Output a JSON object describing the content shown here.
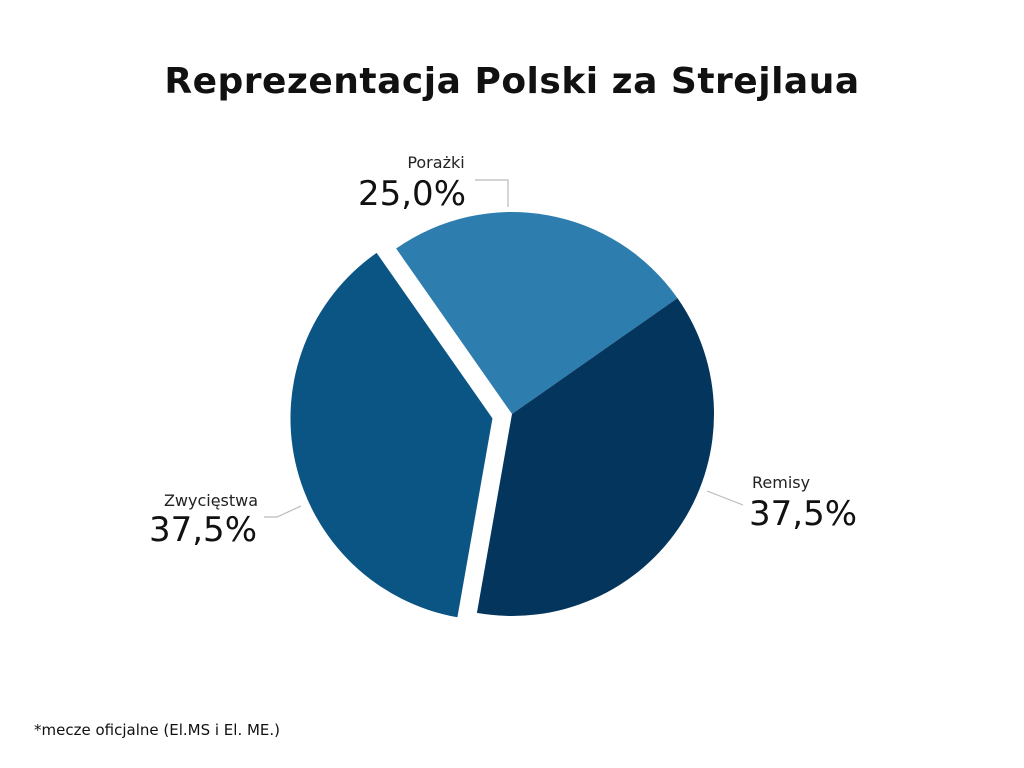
{
  "chart_data": {
    "type": "pie",
    "title": "Reprezentacja Polski za Strejlaua",
    "slices": [
      {
        "name": "Porażki",
        "value": 25.0,
        "display": "25,0%",
        "color": "#2e7daf"
      },
      {
        "name": "Remisy",
        "value": 37.5,
        "display": "37,5%",
        "color": "#03355d"
      },
      {
        "name": "Zwycięstwa",
        "value": 37.5,
        "display": "37,5%",
        "color": "#0b5584",
        "exploded": true
      }
    ]
  },
  "footnote": "*mecze oficjalne (El.MS i El. ME.)",
  "colors": {
    "background": "#ffffff",
    "leader_line": "#bbbbbb"
  }
}
